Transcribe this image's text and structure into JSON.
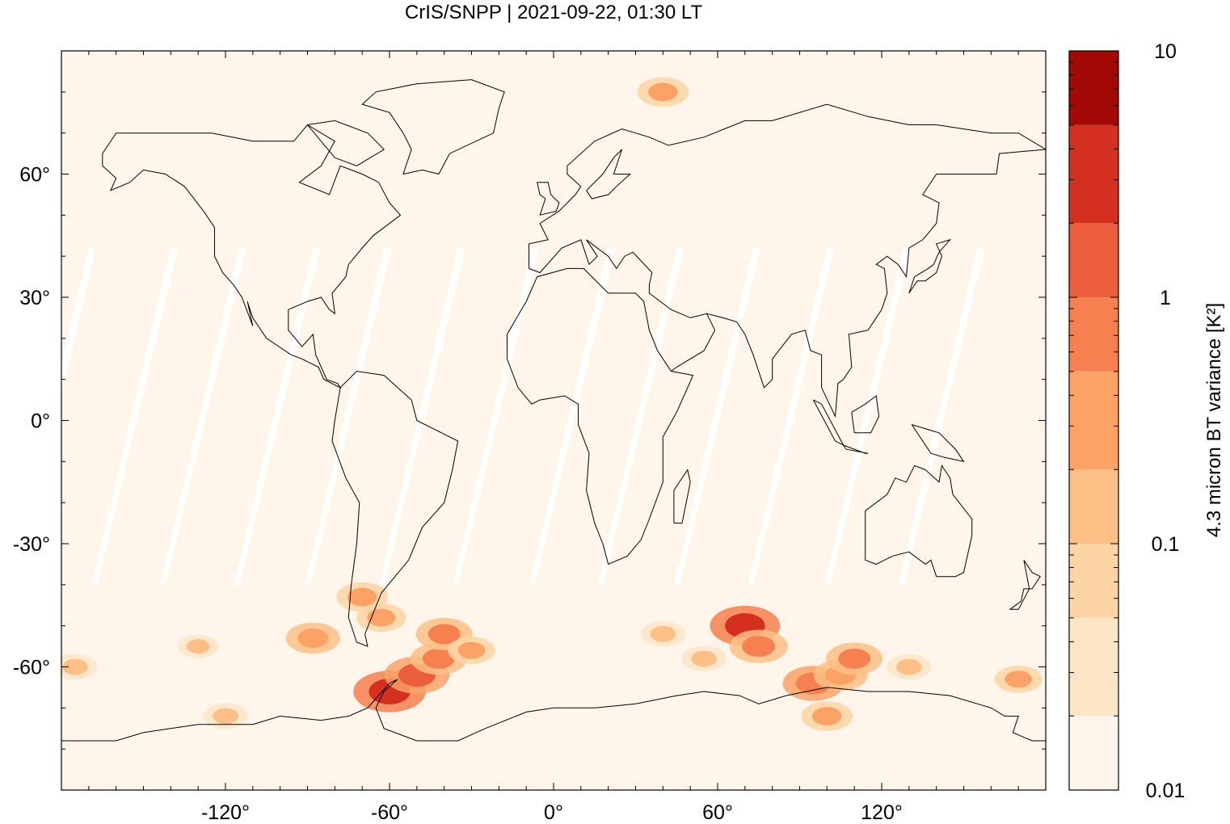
{
  "chart_data": {
    "type": "heatmap",
    "title": "CrIS/SNPP | 2021-09-22, 01:30 LT",
    "xlabel": "",
    "ylabel": "",
    "xlim": [
      -180,
      180
    ],
    "ylim": [
      -90,
      90
    ],
    "x_ticks": [
      -120,
      -60,
      0,
      60,
      120
    ],
    "x_tick_labels": [
      "-120°",
      "-60°",
      "0°",
      "60°",
      "120°"
    ],
    "y_ticks": [
      60,
      30,
      0,
      -30,
      -60
    ],
    "y_tick_labels": [
      "60°",
      "30°",
      "0°",
      "-30°",
      "-60°"
    ],
    "grid": false,
    "colorbar": {
      "label": "4.3 micron BT variance [K²]",
      "scale": "log",
      "range": [
        0.01,
        10
      ],
      "tick_values": [
        0.01,
        0.1,
        1,
        10
      ],
      "tick_labels": [
        "0.01",
        "0.1",
        "1",
        "10"
      ],
      "levels": [
        {
          "from": 0.01,
          "to": 0.02,
          "color": "#fff5eb"
        },
        {
          "from": 0.02,
          "to": 0.05,
          "color": "#fde5c8"
        },
        {
          "from": 0.05,
          "to": 0.1,
          "color": "#fdd4a3"
        },
        {
          "from": 0.1,
          "to": 0.2,
          "color": "#fdbf85"
        },
        {
          "from": 0.2,
          "to": 0.5,
          "color": "#fca267"
        },
        {
          "from": 0.5,
          "to": 1,
          "color": "#f6804f"
        },
        {
          "from": 1,
          "to": 2,
          "color": "#ec5d3c"
        },
        {
          "from": 2,
          "to": 5,
          "color": "#d42f1f"
        },
        {
          "from": 5,
          "to": 10,
          "color": "#a30a05"
        }
      ]
    },
    "background_value": 0.015,
    "hotspots": [
      {
        "lon": -88,
        "lat": -53,
        "value": 0.4
      },
      {
        "lon": -70,
        "lat": -43,
        "value": 0.3
      },
      {
        "lon": -63,
        "lat": -48,
        "value": 0.25
      },
      {
        "lon": -60,
        "lat": -66,
        "value": 2.5
      },
      {
        "lon": -50,
        "lat": -62,
        "value": 1.2
      },
      {
        "lon": -42,
        "lat": -58,
        "value": 0.5
      },
      {
        "lon": -40,
        "lat": -52,
        "value": 0.5
      },
      {
        "lon": -30,
        "lat": -56,
        "value": 0.2
      },
      {
        "lon": 40,
        "lat": -52,
        "value": 0.15
      },
      {
        "lon": 55,
        "lat": -58,
        "value": 0.15
      },
      {
        "lon": 70,
        "lat": -50,
        "value": 2
      },
      {
        "lon": 75,
        "lat": -55,
        "value": 0.6
      },
      {
        "lon": 95,
        "lat": -64,
        "value": 0.8
      },
      {
        "lon": 105,
        "lat": -62,
        "value": 0.4
      },
      {
        "lon": 110,
        "lat": -58,
        "value": 0.5
      },
      {
        "lon": 100,
        "lat": -72,
        "value": 0.3
      },
      {
        "lon": 130,
        "lat": -60,
        "value": 0.15
      },
      {
        "lon": 170,
        "lat": -63,
        "value": 0.2
      },
      {
        "lon": -175,
        "lat": -60,
        "value": 0.15
      },
      {
        "lon": -130,
        "lat": -55,
        "value": 0.1
      },
      {
        "lon": -120,
        "lat": -72,
        "value": 0.15
      },
      {
        "lon": 40,
        "lat": 80,
        "value": 0.3
      }
    ]
  },
  "icons": {
    "colorbar": "colorbar",
    "world_coastlines": "coastline-map"
  }
}
